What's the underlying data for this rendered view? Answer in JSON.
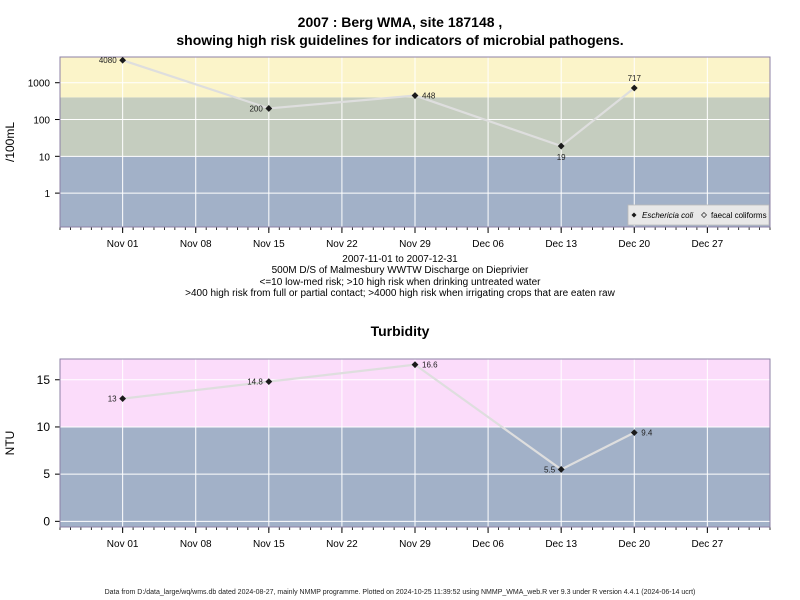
{
  "title_line1": "2007 : Berg WMA, site 187148 ,",
  "title_line2": "showing high risk guidelines for indicators of microbial pathogens.",
  "notes": {
    "dates": "2007-11-01 to 2007-12-31",
    "site": "500M D/S of Malmesbury WWTW Discharge on Dieprivier",
    "risk1": "<=10 low-med risk; >10 high risk when drinking untreated water",
    "risk2": ">400 high risk from full or partial contact; >4000 high risk when irrigating crops that are eaten raw"
  },
  "footer": "Data from D:/data_large/wq/wms.db dated 2024-08-27, mainly NMMP programme. Plotted on 2024-10-25 11:39:52 using NMMP_WMA_web.R ver 9.3 under R version 4.4.1 (2024-06-14 ucrt)",
  "colors": {
    "zone_low": "#a2b1c8",
    "zone_mid": "#c5cdbf",
    "zone_high": "#fbf4c9",
    "zone_turb_high": "#fbdcfa",
    "line": "#dedede",
    "point": "#1a1a1a",
    "grid": "#ffffff",
    "frame": "#8c80a6"
  },
  "chart_data": [
    {
      "type": "line",
      "title": "",
      "xlabel": "",
      "ylabel": "/100mL",
      "yscale": "log10",
      "ylim": [
        0.12,
        5000
      ],
      "xlim": [
        "2007-10-26",
        "2008-01-02"
      ],
      "x_ticks": [
        "Nov 01",
        "Nov 08",
        "Nov 15",
        "Nov 22",
        "Nov 29",
        "Dec 06",
        "Dec 13",
        "Dec 20",
        "Dec 27"
      ],
      "x_tick_dates": [
        "2007-11-01",
        "2007-11-08",
        "2007-11-15",
        "2007-11-22",
        "2007-11-29",
        "2007-12-06",
        "2007-12-13",
        "2007-12-20",
        "2007-12-27"
      ],
      "y_ticks": [
        "1",
        "10",
        "100",
        "1000"
      ],
      "y_tick_values": [
        1,
        10,
        100,
        1000
      ],
      "zones": [
        {
          "from": 0.12,
          "to": 10,
          "color": "#a2b1c8"
        },
        {
          "from": 10,
          "to": 400,
          "color": "#c5cdbf"
        },
        {
          "from": 400,
          "to": 5000,
          "color": "#fbf4c9"
        }
      ],
      "series": [
        {
          "name": "Eschericia coli",
          "x": [
            "2007-11-01",
            "2007-11-15",
            "2007-11-29",
            "2007-12-13",
            "2007-12-20"
          ],
          "values": [
            4080,
            200,
            448,
            19,
            717
          ],
          "labels": [
            "4080",
            "200",
            "448",
            "19",
            "717"
          ]
        }
      ],
      "legend": {
        "placement": "bottom-right",
        "items": [
          "Eschericia coli",
          "faecal coliforms"
        ]
      },
      "grid": true
    },
    {
      "type": "line",
      "title": "Turbidity",
      "xlabel": "",
      "ylabel": "NTU",
      "ylim": [
        -0.6,
        17.2
      ],
      "xlim": [
        "2007-10-26",
        "2008-01-02"
      ],
      "x_ticks": [
        "Nov 01",
        "Nov 08",
        "Nov 15",
        "Nov 22",
        "Nov 29",
        "Dec 06",
        "Dec 13",
        "Dec 20",
        "Dec 27"
      ],
      "x_tick_dates": [
        "2007-11-01",
        "2007-11-08",
        "2007-11-15",
        "2007-11-22",
        "2007-11-29",
        "2007-12-06",
        "2007-12-13",
        "2007-12-20",
        "2007-12-27"
      ],
      "y_ticks": [
        "0",
        "5",
        "10",
        "15"
      ],
      "y_tick_values": [
        0,
        5,
        10,
        15
      ],
      "zones": [
        {
          "from": -0.6,
          "to": 10,
          "color": "#a2b1c8"
        },
        {
          "from": 10,
          "to": 17.2,
          "color": "#fbdcfa"
        }
      ],
      "series": [
        {
          "name": "",
          "x": [
            "2007-11-01",
            "2007-11-15",
            "2007-11-29",
            "2007-12-13",
            "2007-12-20"
          ],
          "values": [
            13,
            14.8,
            16.6,
            5.5,
            9.4
          ],
          "labels": [
            "13",
            "14.8",
            "16.6",
            "5.5",
            "9.4"
          ]
        }
      ],
      "grid": true
    }
  ]
}
